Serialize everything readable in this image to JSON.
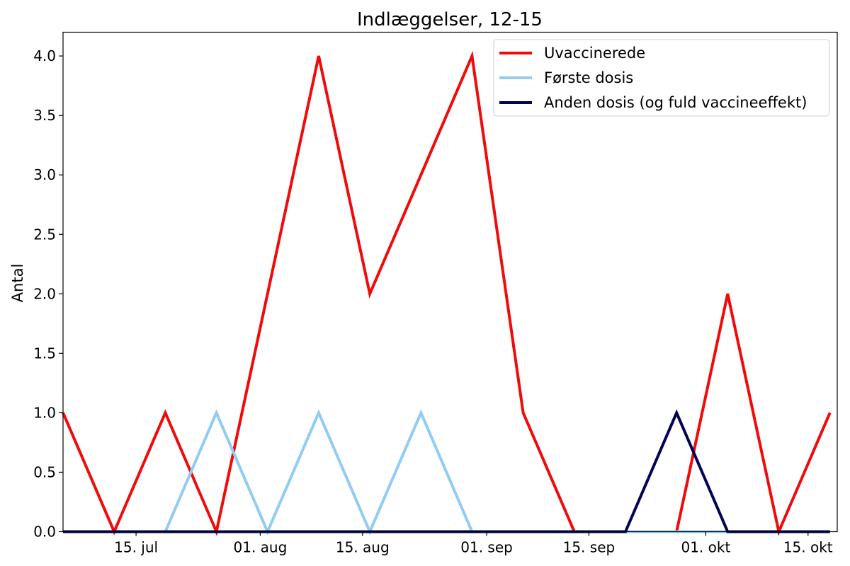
{
  "chart_data": {
    "type": "line",
    "title": "Indlæggelser, 12-15",
    "xlabel": "",
    "ylabel": "Antal",
    "x": [
      "2021-07-05",
      "2021-07-12",
      "2021-07-19",
      "2021-07-26",
      "2021-08-02",
      "2021-08-09",
      "2021-08-16",
      "2021-08-23",
      "2021-08-30",
      "2021-09-06",
      "2021-09-13",
      "2021-09-20",
      "2021-09-27",
      "2021-10-04",
      "2021-10-11",
      "2021-10-18"
    ],
    "xlim": [
      "2021-07-05",
      "2021-10-19"
    ],
    "ylim": [
      0,
      4.2
    ],
    "x_ticks": [
      {
        "date": "2021-07-15",
        "label": "15. jul"
      },
      {
        "date": "2021-08-01",
        "label": "01. aug"
      },
      {
        "date": "2021-08-15",
        "label": "15. aug"
      },
      {
        "date": "2021-09-01",
        "label": "01. sep"
      },
      {
        "date": "2021-09-15",
        "label": "15. sep"
      },
      {
        "date": "2021-10-01",
        "label": "01. okt"
      },
      {
        "date": "2021-10-15",
        "label": "15. okt"
      }
    ],
    "y_ticks": [
      {
        "value": 0,
        "label": "0.0"
      },
      {
        "value": 0.5,
        "label": "0.5"
      },
      {
        "value": 1,
        "label": "1.0"
      },
      {
        "value": 1.5,
        "label": "1.5"
      },
      {
        "value": 2,
        "label": "2.0"
      },
      {
        "value": 2.5,
        "label": "2.5"
      },
      {
        "value": 3,
        "label": "3.0"
      },
      {
        "value": 3.5,
        "label": "3.5"
      },
      {
        "value": 4,
        "label": "4.0"
      }
    ],
    "grid": false,
    "legend_position": "top-right",
    "series": [
      {
        "name": "Uvaccinerede",
        "color": "#f00a0a",
        "values": [
          1,
          0,
          1,
          0,
          2,
          4,
          2,
          3,
          4,
          1,
          0,
          0,
          0,
          2,
          0,
          1
        ]
      },
      {
        "name": "Første dosis",
        "color": "#90ccf4",
        "values": [
          0,
          0,
          0,
          1,
          0,
          1,
          0,
          1,
          0,
          0,
          0,
          0,
          0,
          0,
          0,
          0
        ]
      },
      {
        "name": "Anden dosis (og fuld vaccineeffekt)",
        "color": "#030355",
        "values": [
          0,
          0,
          0,
          0,
          0,
          0,
          0,
          0,
          0,
          0,
          0,
          0,
          1,
          0,
          0,
          0
        ]
      }
    ]
  }
}
